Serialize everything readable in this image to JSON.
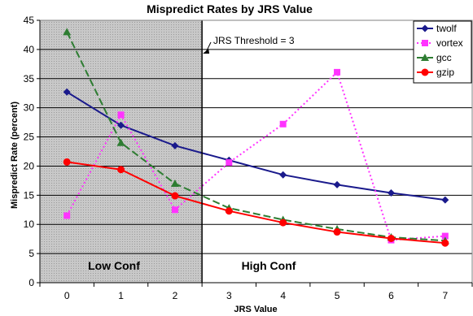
{
  "chart_data": {
    "type": "line",
    "title": "Mispredict Rates by JRS Value",
    "xlabel": "JRS Value",
    "ylabel": "Mispredict Rate (percent)",
    "x": [
      0,
      1,
      2,
      3,
      4,
      5,
      6,
      7
    ],
    "ylim": [
      0,
      45
    ],
    "yticks": [
      0,
      5,
      10,
      15,
      20,
      25,
      30,
      35,
      40,
      45
    ],
    "grid": "horizontal",
    "legend_position": "top-right",
    "series": [
      {
        "name": "twolf",
        "values": [
          32.7,
          27.0,
          23.5,
          21.0,
          18.5,
          16.8,
          15.4,
          14.2
        ],
        "color": "#1a1a8c",
        "line_style": "solid",
        "marker": "diamond"
      },
      {
        "name": "vortex",
        "values": [
          11.5,
          28.8,
          12.5,
          20.6,
          27.2,
          36.1,
          7.3,
          8.0
        ],
        "color": "#ff33ff",
        "line_style": "dotted",
        "marker": "square"
      },
      {
        "name": "gcc",
        "values": [
          43.0,
          24.0,
          17.0,
          12.8,
          10.8,
          9.2,
          7.8,
          7.2
        ],
        "color": "#2e7d32",
        "line_style": "dashed",
        "marker": "triangle"
      },
      {
        "name": "gzip",
        "values": [
          20.7,
          19.4,
          14.9,
          12.3,
          10.3,
          8.7,
          7.6,
          6.8
        ],
        "color": "#ff0000",
        "line_style": "solid",
        "marker": "circle"
      }
    ],
    "threshold": {
      "label": "JRS Threshold = 3",
      "x": 2.5
    },
    "regions": [
      {
        "label": "Low Conf",
        "x_from": -0.5,
        "x_to": 2.5,
        "shaded": true
      },
      {
        "label": "High Conf",
        "x_from": 2.5,
        "x_to": 7.5,
        "shaded": false
      }
    ]
  }
}
